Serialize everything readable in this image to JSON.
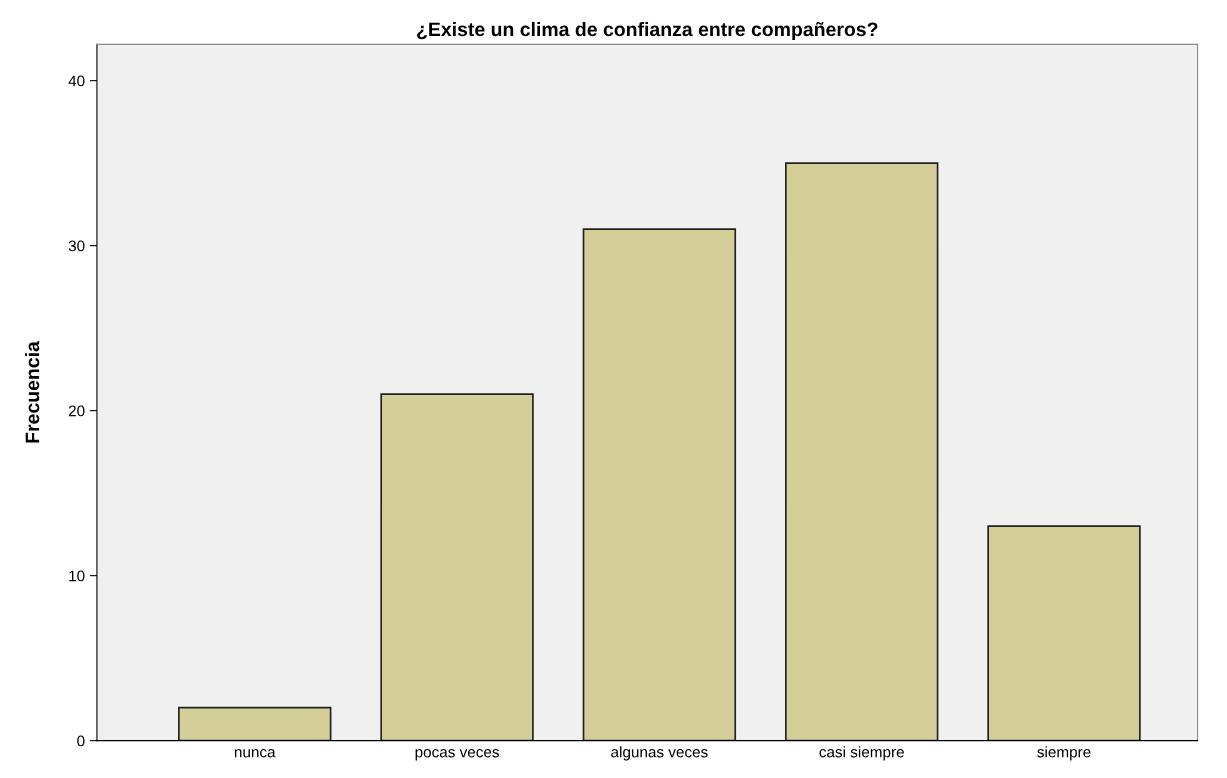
{
  "chart_data": {
    "type": "bar",
    "title": "¿Existe un clima de confianza entre compañeros?",
    "ylabel": "Frecuencia",
    "categories": [
      "nunca",
      "pocas veces",
      "algunas veces",
      "casi siempre",
      "siempre"
    ],
    "values": [
      2,
      21,
      31,
      35,
      13
    ],
    "color": "#d3ce97",
    "ylim": [
      0,
      42.2
    ],
    "yticks": [
      0,
      10,
      20,
      30,
      40
    ],
    "grid": false
  }
}
